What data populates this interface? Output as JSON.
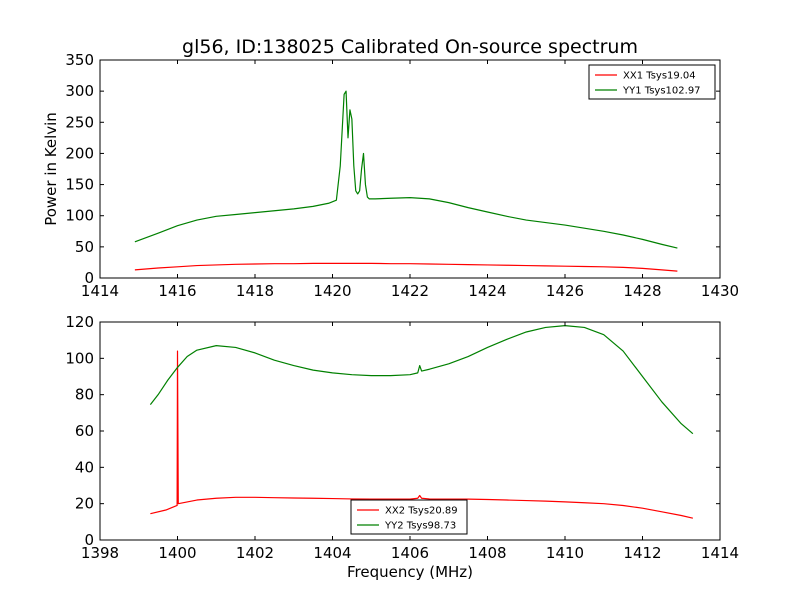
{
  "figure": {
    "title": "gl56, ID:138025 Calibrated On-source spectrum"
  },
  "chart_data": [
    {
      "type": "line",
      "title": "gl56, ID:138025 Calibrated On-source spectrum",
      "xlabel": "",
      "ylabel": "Power in Kelvin",
      "xlim": [
        1414,
        1430
      ],
      "ylim": [
        0,
        350
      ],
      "xticks": [
        1414,
        1416,
        1418,
        1420,
        1422,
        1424,
        1426,
        1428,
        1430
      ],
      "yticks": [
        0,
        50,
        100,
        150,
        200,
        250,
        300,
        350
      ],
      "legend_position": "upper-right",
      "series": [
        {
          "name": "XX1 Tsys19.04",
          "color": "#ff0000",
          "x": [
            1414.9,
            1415.5,
            1416.0,
            1416.5,
            1417.0,
            1417.5,
            1418.0,
            1418.5,
            1419.0,
            1419.5,
            1420.0,
            1420.5,
            1421.0,
            1421.5,
            1422.0,
            1422.5,
            1423.0,
            1423.5,
            1424.0,
            1424.5,
            1425.0,
            1425.5,
            1426.0,
            1426.5,
            1427.0,
            1427.5,
            1428.0,
            1428.5,
            1428.9
          ],
          "y": [
            13,
            16,
            18,
            20,
            21,
            22,
            22.5,
            23,
            23,
            23.5,
            23.5,
            23.5,
            23.5,
            23,
            23,
            22.5,
            22,
            21.5,
            21,
            20.5,
            20,
            19.5,
            19,
            18.5,
            18,
            17,
            15.5,
            13,
            11
          ]
        },
        {
          "name": "YY1 Tsys102.97",
          "color": "#008000",
          "x": [
            1414.9,
            1415.5,
            1416.0,
            1416.5,
            1417.0,
            1417.5,
            1418.0,
            1418.5,
            1419.0,
            1419.5,
            1419.9,
            1420.1,
            1420.2,
            1420.3,
            1420.35,
            1420.4,
            1420.45,
            1420.5,
            1420.55,
            1420.6,
            1420.65,
            1420.7,
            1420.75,
            1420.8,
            1420.85,
            1420.9,
            1420.95,
            1421.0,
            1421.1,
            1421.5,
            1422.0,
            1422.5,
            1423.0,
            1423.5,
            1424.0,
            1424.5,
            1425.0,
            1425.5,
            1426.0,
            1426.5,
            1427.0,
            1427.5,
            1428.0,
            1428.5,
            1428.9
          ],
          "y": [
            58,
            72,
            84,
            93,
            99,
            102,
            105,
            108,
            111,
            115,
            120,
            125,
            180,
            295,
            300,
            225,
            270,
            255,
            180,
            140,
            135,
            140,
            175,
            200,
            150,
            130,
            127,
            127,
            127,
            128,
            129,
            127,
            121,
            113,
            106,
            99,
            93,
            89,
            85,
            80,
            75,
            69,
            62,
            54,
            48
          ]
        }
      ]
    },
    {
      "type": "line",
      "title": "",
      "xlabel": "Frequency (MHz)",
      "ylabel": "",
      "xlim": [
        1398,
        1414
      ],
      "ylim": [
        0,
        120
      ],
      "xticks": [
        1398,
        1400,
        1402,
        1404,
        1406,
        1408,
        1410,
        1412,
        1414
      ],
      "yticks": [
        0,
        20,
        40,
        60,
        80,
        100,
        120
      ],
      "legend_position": "lower-center",
      "series": [
        {
          "name": "XX2 Tsys20.89",
          "color": "#ff0000",
          "x": [
            1399.3,
            1399.7,
            1399.99,
            1400.0,
            1400.02,
            1400.5,
            1401.0,
            1401.5,
            1402.0,
            1402.5,
            1403.0,
            1403.5,
            1404.0,
            1404.5,
            1405.0,
            1405.5,
            1406.0,
            1406.2,
            1406.25,
            1406.3,
            1406.5,
            1407.0,
            1407.5,
            1408.0,
            1408.5,
            1409.0,
            1409.5,
            1410.0,
            1410.5,
            1411.0,
            1411.5,
            1412.0,
            1412.5,
            1413.0,
            1413.3
          ],
          "y": [
            14.5,
            16.5,
            19,
            104,
            20,
            22,
            23,
            23.5,
            23.5,
            23.3,
            23.1,
            23,
            22.8,
            22.6,
            22.5,
            22.5,
            22.5,
            23,
            24.5,
            23,
            22.6,
            22.5,
            22.5,
            22.3,
            22,
            21.7,
            21.4,
            21,
            20.5,
            20,
            19,
            17.5,
            15.5,
            13.5,
            12
          ]
        },
        {
          "name": "YY2 Tsys98.73",
          "color": "#008000",
          "x": [
            1399.3,
            1399.5,
            1399.75,
            1400.0,
            1400.25,
            1400.5,
            1401.0,
            1401.5,
            1402.0,
            1402.5,
            1403.0,
            1403.5,
            1404.0,
            1404.5,
            1405.0,
            1405.5,
            1406.0,
            1406.2,
            1406.25,
            1406.3,
            1406.5,
            1407.0,
            1407.5,
            1408.0,
            1408.5,
            1409.0,
            1409.5,
            1410.0,
            1410.5,
            1411.0,
            1411.5,
            1412.0,
            1412.5,
            1413.0,
            1413.3
          ],
          "y": [
            74.5,
            80,
            88,
            95,
            101,
            104.5,
            107,
            106,
            103,
            99,
            96,
            93.5,
            92,
            91,
            90.5,
            90.5,
            91,
            92,
            96,
            93,
            94,
            97,
            101,
            106,
            110.5,
            114.5,
            117,
            118,
            117,
            113,
            104,
            90,
            76,
            64,
            58.5
          ]
        }
      ]
    }
  ]
}
